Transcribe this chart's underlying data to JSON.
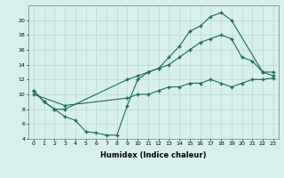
{
  "line1_x": [
    0,
    1,
    2,
    3,
    4,
    5,
    6,
    7,
    8,
    9,
    10,
    11,
    12,
    13,
    14,
    15,
    16,
    17,
    18,
    19,
    22,
    23
  ],
  "line1_y": [
    10.5,
    9.0,
    8.0,
    7.0,
    6.5,
    5.0,
    4.8,
    4.5,
    4.5,
    8.5,
    12.0,
    13.0,
    13.5,
    15.0,
    16.5,
    18.5,
    19.2,
    20.5,
    21.0,
    20.0,
    13.0,
    12.5
  ],
  "line2_x": [
    0,
    1,
    2,
    3,
    9,
    10,
    11,
    12,
    13,
    14,
    15,
    16,
    17,
    18,
    19,
    20,
    21,
    22,
    23
  ],
  "line2_y": [
    10.5,
    9.0,
    8.0,
    8.0,
    12.0,
    12.5,
    13.0,
    13.5,
    14.0,
    15.0,
    16.0,
    17.0,
    17.5,
    18.0,
    17.5,
    15.0,
    14.5,
    13.0,
    13.0
  ],
  "line3_x": [
    0,
    3,
    9,
    10,
    11,
    12,
    13,
    14,
    15,
    16,
    17,
    18,
    19,
    20,
    21,
    22,
    23
  ],
  "line3_y": [
    10.0,
    8.5,
    9.5,
    10.0,
    10.0,
    10.5,
    11.0,
    11.0,
    11.5,
    11.5,
    12.0,
    11.5,
    11.0,
    11.5,
    12.0,
    12.0,
    12.2
  ],
  "line_color": "#1a6b5a",
  "bg_color": "#d8f0ec",
  "grid_color": "#b8d8d0",
  "xlabel": "Humidex (Indice chaleur)",
  "ylim": [
    4,
    22
  ],
  "xlim": [
    -0.5,
    23.5
  ],
  "yticks": [
    4,
    6,
    8,
    10,
    12,
    14,
    16,
    18,
    20
  ],
  "xticks": [
    0,
    1,
    2,
    3,
    4,
    5,
    6,
    7,
    8,
    9,
    10,
    11,
    12,
    13,
    14,
    15,
    16,
    17,
    18,
    19,
    20,
    21,
    22,
    23
  ],
  "marker": "+"
}
